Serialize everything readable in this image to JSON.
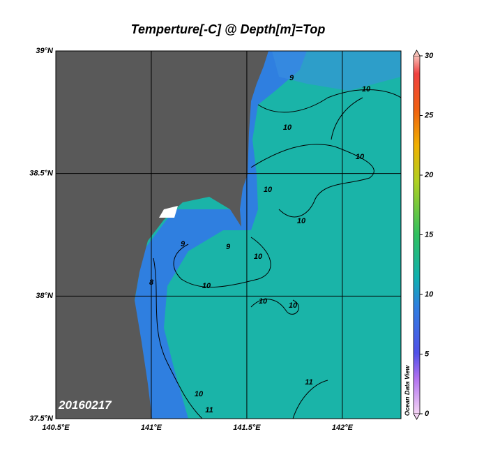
{
  "map": {
    "title": "Temperture[-C] @ Depth[m]=Top",
    "lon_range": [
      140.5,
      142.307
    ],
    "lat_range": [
      37.5,
      39
    ],
    "lon_ticks": [
      {
        "value": 140.5,
        "label": "140.5°E"
      },
      {
        "value": 141,
        "label": "141°E"
      },
      {
        "value": 141.5,
        "label": "141.5°E"
      },
      {
        "value": 142,
        "label": "142°E"
      }
    ],
    "lat_ticks": [
      {
        "value": 37.5,
        "label": "37.5°N"
      },
      {
        "value": 38,
        "label": "38°N"
      },
      {
        "value": 38.5,
        "label": "38.5°N"
      },
      {
        "value": 39,
        "label": "39°N"
      }
    ],
    "colorbar": {
      "range": [
        0,
        30
      ],
      "ticks": [
        0,
        5,
        10,
        15,
        20,
        25,
        30
      ]
    },
    "date_label": "20160217",
    "watermark": "Ocean Data View",
    "contour_labels": [
      9,
      10,
      10,
      10,
      10,
      10,
      10,
      9,
      9,
      8,
      10,
      10,
      10,
      10,
      11,
      11
    ]
  }
}
